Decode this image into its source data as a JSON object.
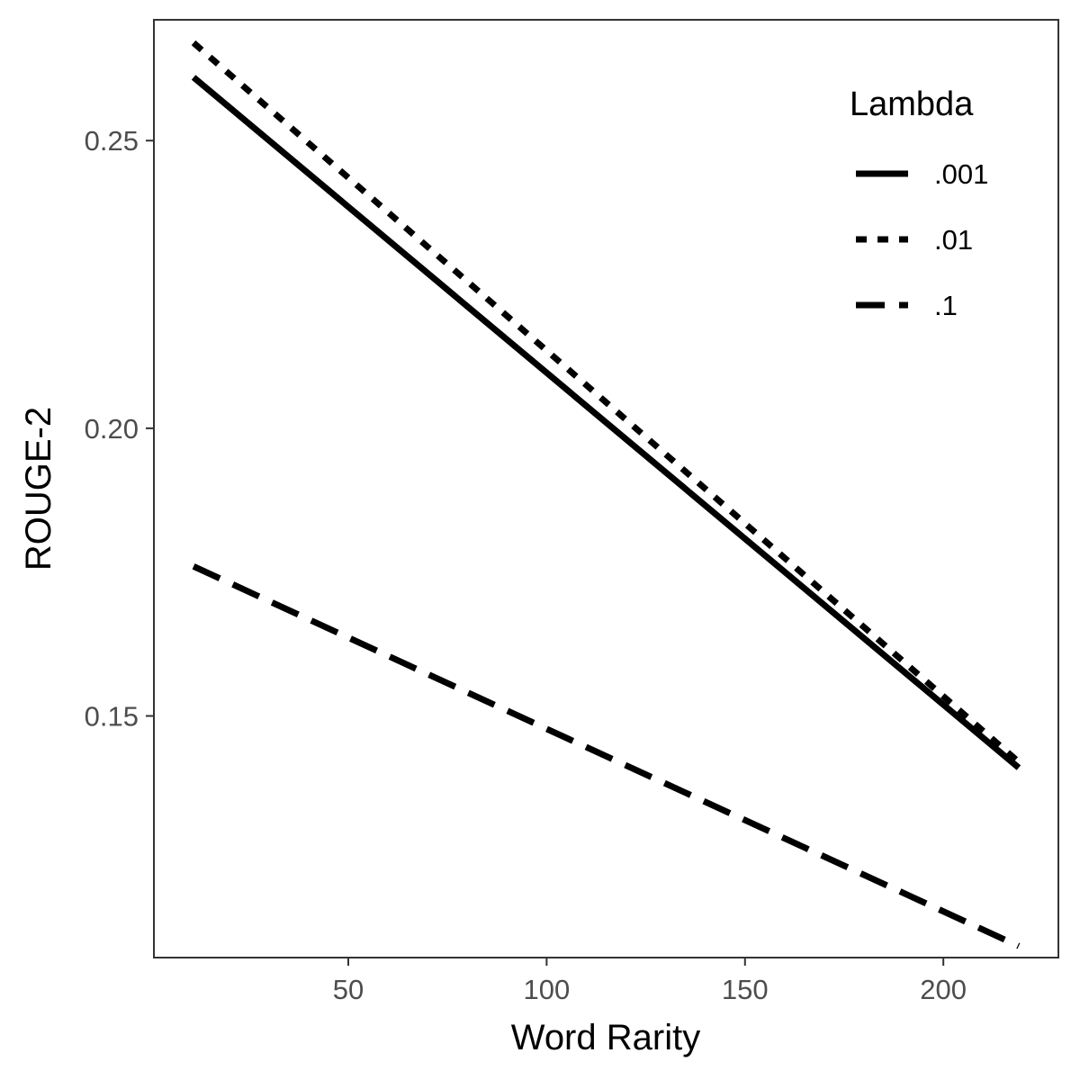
{
  "chart_data": {
    "type": "line",
    "xlabel": "Word Rarity",
    "ylabel": "ROUGE-2",
    "xlim": [
      1,
      229
    ],
    "ylim": [
      0.108,
      0.271
    ],
    "xticks": [
      50,
      100,
      150,
      200
    ],
    "xtick_labels": [
      "50",
      "100",
      "150",
      "200"
    ],
    "yticks": [
      0.15,
      0.2,
      0.25
    ],
    "ytick_labels": [
      "0.15",
      "0.20",
      "0.25"
    ],
    "grid": false,
    "legend": {
      "title": "Lambda",
      "placement": "top-right"
    },
    "series": [
      {
        "name": ".001",
        "linetype": "solid",
        "x": [
          11,
          219
        ],
        "y": [
          0.261,
          0.141
        ]
      },
      {
        "name": ".01",
        "linetype": "dotted",
        "x": [
          11,
          219
        ],
        "y": [
          0.267,
          0.142
        ]
      },
      {
        "name": ".1",
        "linetype": "dashed",
        "x": [
          11,
          219
        ],
        "y": [
          0.176,
          0.11
        ]
      }
    ]
  }
}
